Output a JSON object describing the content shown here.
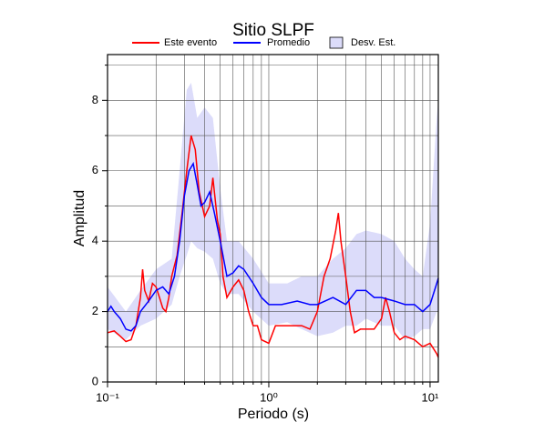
{
  "chart_data": {
    "type": "line",
    "title": "Sitio SLPF",
    "xlabel": "Periodo (s)",
    "ylabel": "Amplitud",
    "xscale": "log",
    "xlim": [
      0.1,
      11.25
    ],
    "ylim": [
      0,
      9.3
    ],
    "xticks": [
      {
        "value": 0.1,
        "label": "10⁻¹"
      },
      {
        "value": 1,
        "label": "10⁰"
      },
      {
        "value": 10,
        "label": "10¹"
      }
    ],
    "xminor": [
      0.2,
      0.3,
      0.4,
      0.5,
      0.6,
      0.7,
      0.8,
      0.9,
      2,
      3,
      4,
      5,
      6,
      7,
      8,
      9
    ],
    "yticks": [
      0,
      2,
      4,
      6,
      8
    ],
    "yminor": [
      1,
      3,
      5,
      7,
      9
    ],
    "grid": true,
    "legend": "top",
    "band": {
      "name": "Desv. Est.",
      "color": "#dcdcfa",
      "x": [
        0.1,
        0.13,
        0.16,
        0.2,
        0.25,
        0.28,
        0.31,
        0.33,
        0.36,
        0.4,
        0.45,
        0.5,
        0.55,
        0.65,
        0.8,
        1.0,
        1.3,
        1.6,
        2.0,
        2.5,
        3.0,
        3.5,
        4.0,
        5.0,
        6.0,
        7,
        8,
        9,
        10,
        11,
        11.25
      ],
      "lower": [
        1.5,
        1.2,
        1.6,
        1.8,
        2.2,
        3.0,
        3.6,
        4.0,
        3.8,
        3.7,
        3.5,
        2.8,
        2.5,
        2.5,
        2.0,
        1.6,
        1.7,
        1.5,
        1.3,
        1.4,
        1.6,
        1.6,
        1.8,
        1.6,
        1.6,
        1.2,
        1.3,
        1.5,
        1.5,
        2.0,
        2.0
      ],
      "upper": [
        2.7,
        2.0,
        2.6,
        3.2,
        3.5,
        6.0,
        8.3,
        8.5,
        7.5,
        7.8,
        7.5,
        5.5,
        4.0,
        4.0,
        3.5,
        2.8,
        2.8,
        3.0,
        3.0,
        3.5,
        3.8,
        4.2,
        4.3,
        4.2,
        4.0,
        3.5,
        3.2,
        3.0,
        4.5,
        7.5,
        8.0
      ]
    },
    "series": [
      {
        "name": "Este evento",
        "color": "#ff0000",
        "x": [
          0.1,
          0.11,
          0.12,
          0.13,
          0.14,
          0.15,
          0.16,
          0.165,
          0.17,
          0.18,
          0.19,
          0.2,
          0.21,
          0.22,
          0.23,
          0.24,
          0.25,
          0.27,
          0.29,
          0.31,
          0.33,
          0.35,
          0.37,
          0.4,
          0.43,
          0.45,
          0.48,
          0.5,
          0.52,
          0.55,
          0.6,
          0.65,
          0.7,
          0.75,
          0.8,
          0.85,
          0.9,
          1.0,
          1.1,
          1.2,
          1.4,
          1.6,
          1.8,
          2.0,
          2.2,
          2.4,
          2.6,
          2.7,
          2.8,
          3.0,
          3.2,
          3.4,
          3.7,
          4.0,
          4.5,
          5.0,
          5.3,
          5.6,
          6.0,
          6.5,
          7.0,
          8.0,
          9.0,
          10,
          11,
          11.25
        ],
        "values": [
          1.4,
          1.45,
          1.3,
          1.15,
          1.2,
          1.6,
          2.4,
          3.2,
          2.6,
          2.3,
          2.8,
          2.7,
          2.4,
          2.1,
          2.0,
          2.4,
          3.0,
          3.6,
          4.8,
          6.0,
          7.0,
          6.6,
          5.4,
          4.7,
          5.0,
          5.8,
          4.6,
          4.2,
          3.0,
          2.4,
          2.7,
          2.9,
          2.6,
          2.0,
          1.6,
          1.6,
          1.2,
          1.1,
          1.6,
          1.6,
          1.6,
          1.6,
          1.5,
          2.0,
          3.0,
          3.5,
          4.3,
          4.8,
          4.0,
          3.0,
          2.0,
          1.4,
          1.5,
          1.5,
          1.5,
          1.8,
          2.4,
          2.0,
          1.4,
          1.2,
          1.3,
          1.2,
          1.0,
          1.1,
          0.8,
          0.7
        ]
      },
      {
        "name": "Promedio",
        "color": "#0000ff",
        "x": [
          0.1,
          0.105,
          0.11,
          0.12,
          0.13,
          0.14,
          0.15,
          0.16,
          0.18,
          0.2,
          0.22,
          0.24,
          0.26,
          0.28,
          0.3,
          0.32,
          0.34,
          0.36,
          0.38,
          0.4,
          0.43,
          0.46,
          0.5,
          0.55,
          0.6,
          0.65,
          0.7,
          0.8,
          0.9,
          1.0,
          1.2,
          1.5,
          1.8,
          2.0,
          2.5,
          3.0,
          3.5,
          4.0,
          4.5,
          5.0,
          6.0,
          7.0,
          8.0,
          9.0,
          10,
          11,
          11.25
        ],
        "values": [
          2.0,
          2.15,
          2.0,
          1.8,
          1.5,
          1.45,
          1.6,
          2.0,
          2.3,
          2.6,
          2.7,
          2.5,
          3.0,
          4.0,
          5.3,
          6.0,
          6.2,
          5.6,
          5.0,
          5.1,
          5.4,
          4.8,
          4.0,
          3.0,
          3.1,
          3.3,
          3.2,
          2.8,
          2.4,
          2.2,
          2.2,
          2.3,
          2.2,
          2.2,
          2.4,
          2.2,
          2.6,
          2.6,
          2.4,
          2.4,
          2.3,
          2.2,
          2.2,
          2.0,
          2.2,
          2.8,
          2.95
        ]
      }
    ]
  }
}
